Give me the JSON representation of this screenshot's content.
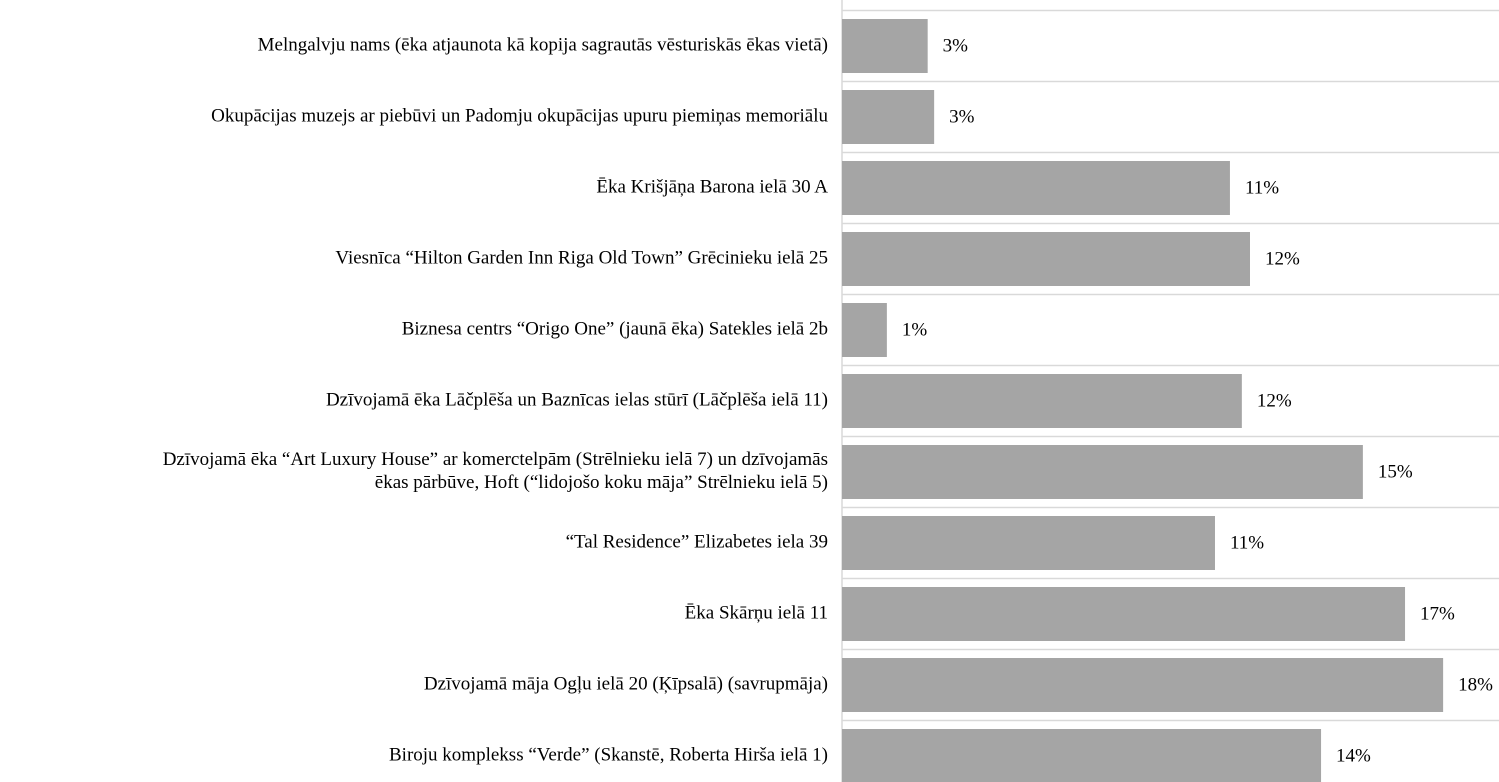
{
  "chart_data": {
    "type": "hbar",
    "categories": [
      "Melngalvju nams (ēka atjaunota kā kopija sagrautās vēsturiskās ēkas vietā)",
      "Okupācijas muzejs ar piebūvi un Padomju okupācijas upuru piemiņas memoriālu",
      "Ēka Krišjāņa Barona ielā 30 A",
      "Viesnīca “Hilton Garden Inn Riga Old Town” Grēcinieku ielā 25",
      "Biznesa centrs “Origo One” (jaunā ēka) Satekles ielā 2b",
      "Dzīvojamā ēka Lāčplēša un Baznīcas ielas stūrī (Lāčplēša ielā 11)",
      "Dzīvojamā ēka “Art Luxury House” ar komerctelpām (Strēlnieku ielā 7) un dzīvojamās\nēkas pārbūve, Hoft (“lidojošo koku māja” Strēlnieku ielā 5)",
      "“Tal Residence” Elizabetes iela 39",
      "Ēka Skārņu ielā 11",
      "Dzīvojamā māja Ogļu ielā 20 (Ķīpsalā) (savrupmāja)",
      "Biroju komplekss “Verde” (Skanstē, Roberta Hirša ielā 1)"
    ],
    "values": [
      2.52,
      2.71,
      11.41,
      12.0,
      1.32,
      11.76,
      15.32,
      10.97,
      16.56,
      17.68,
      14.09
    ],
    "value_labels": [
      "3%",
      "3%",
      "11%",
      "12%",
      "1%",
      "12%",
      "15%",
      "11%",
      "17%",
      "18%",
      "14%"
    ],
    "color": "#a5a5a5",
    "xlim": [
      0,
      19.3
    ]
  }
}
